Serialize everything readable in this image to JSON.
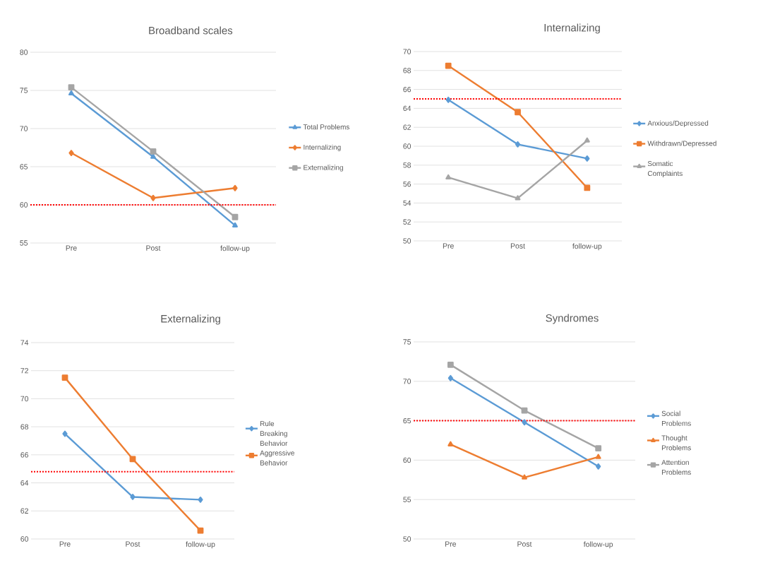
{
  "chart_data": [
    {
      "type": "line",
      "title": "Broadband scales",
      "categories": [
        "Pre",
        "Post",
        "follow-up"
      ],
      "ylim": [
        55,
        80
      ],
      "yticks": [
        55,
        60,
        65,
        70,
        75,
        80
      ],
      "grid": "y",
      "legend": "right",
      "series": [
        {
          "name": "Total Problems",
          "color": "#5b9bd5",
          "marker": "triangle",
          "values": [
            74.6,
            66.3,
            57.3
          ]
        },
        {
          "name": "Internalizing",
          "color": "#ed7d31",
          "marker": "diamond",
          "values": [
            66.8,
            60.9,
            62.2
          ]
        },
        {
          "name": "Externalizing",
          "color": "#a5a5a5",
          "marker": "square",
          "values": [
            75.4,
            67.0,
            58.4
          ]
        }
      ],
      "ref_lines": [
        {
          "axis": "y",
          "value": 60,
          "color": "#ff0000",
          "line_style": "dotted"
        }
      ]
    },
    {
      "type": "line",
      "title": "Internalizing",
      "categories": [
        "Pre",
        "Post",
        "follow-up"
      ],
      "ylim": [
        50,
        70
      ],
      "yticks": [
        50,
        52,
        54,
        56,
        58,
        60,
        62,
        64,
        66,
        68,
        70
      ],
      "grid": "y",
      "legend": "right",
      "series": [
        {
          "name": "Anxious/Depressed",
          "color": "#5b9bd5",
          "marker": "diamond",
          "values": [
            64.9,
            60.2,
            58.7
          ]
        },
        {
          "name": "Withdrawn/Depressed",
          "color": "#ed7d31",
          "marker": "square",
          "values": [
            68.5,
            63.6,
            55.6
          ]
        },
        {
          "name": "Somatic Complaints",
          "color": "#a5a5a5",
          "marker": "triangle",
          "values": [
            56.7,
            54.5,
            60.6
          ]
        }
      ],
      "ref_lines": [
        {
          "axis": "y",
          "value": 65,
          "color": "#ff0000",
          "line_style": "dotted"
        }
      ]
    },
    {
      "type": "line",
      "title": "Externalizing",
      "categories": [
        "Pre",
        "Post",
        "follow-up"
      ],
      "ylim": [
        60,
        74
      ],
      "yticks": [
        60,
        62,
        64,
        66,
        68,
        70,
        72,
        74
      ],
      "grid": "y",
      "legend": "right",
      "series": [
        {
          "name": "Rule Breaking Behavior",
          "color": "#5b9bd5",
          "marker": "diamond",
          "values": [
            67.5,
            63.0,
            62.8
          ]
        },
        {
          "name": "Aggressive Behavior",
          "color": "#ed7d31",
          "marker": "square",
          "values": [
            71.5,
            65.7,
            60.6
          ]
        }
      ],
      "ref_lines": [
        {
          "axis": "y",
          "value": 64.8,
          "color": "#ff0000",
          "line_style": "dotted"
        }
      ]
    },
    {
      "type": "line",
      "title": "Syndromes",
      "categories": [
        "Pre",
        "Post",
        "follow-up"
      ],
      "ylim": [
        50,
        75
      ],
      "yticks": [
        50,
        55,
        60,
        65,
        70,
        75
      ],
      "grid": "y",
      "legend": "right",
      "series": [
        {
          "name": "Social Problems",
          "color": "#5b9bd5",
          "marker": "diamond",
          "values": [
            70.4,
            64.8,
            59.2
          ]
        },
        {
          "name": "Thought Problems",
          "color": "#ed7d31",
          "marker": "triangle",
          "values": [
            62.0,
            57.8,
            60.4
          ]
        },
        {
          "name": "Attention Problems",
          "color": "#a5a5a5",
          "marker": "square",
          "values": [
            72.1,
            66.3,
            61.5
          ]
        }
      ],
      "ref_lines": [
        {
          "axis": "y",
          "value": 65,
          "color": "#ff0000",
          "line_style": "dotted"
        }
      ]
    }
  ]
}
